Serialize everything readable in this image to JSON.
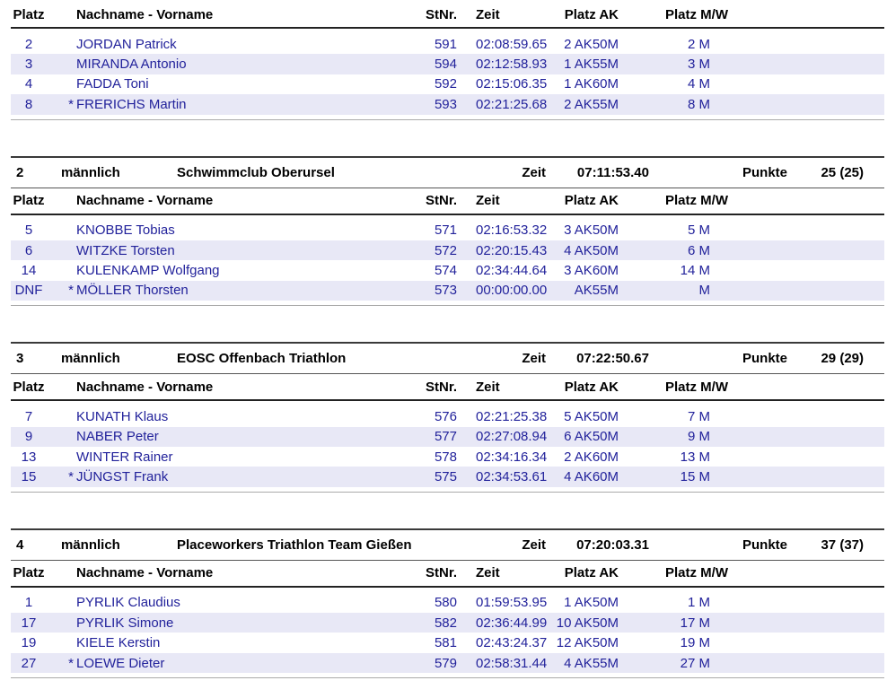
{
  "labels": {
    "zeit": "Zeit",
    "punkte": "Punkte"
  },
  "columns": {
    "platz": "Platz",
    "name": "Nachname - Vorname",
    "stnr": "StNr.",
    "zeit": "Zeit",
    "platz_ak": "Platz AK",
    "platz_mw": "Platz M/W"
  },
  "colors": {
    "data_text": "#22229b",
    "header_text": "#000000",
    "row_alt_background": "#e8e8f6",
    "rule_dark": "#3a3a3a",
    "rule_gray": "#aaaaaa"
  },
  "sections": [
    {
      "team": null,
      "rows": [
        {
          "platz": "2",
          "star": "",
          "name": "JORDAN Patrick",
          "stnr": "591",
          "zeit": "02:08:59.65",
          "platz_ak": "2 AK50M",
          "platz_mw": "2 M"
        },
        {
          "platz": "3",
          "star": "",
          "name": "MIRANDA Antonio",
          "stnr": "594",
          "zeit": "02:12:58.93",
          "platz_ak": "1 AK55M",
          "platz_mw": "3 M"
        },
        {
          "platz": "4",
          "star": "",
          "name": "FADDA Toni",
          "stnr": "592",
          "zeit": "02:15:06.35",
          "platz_ak": "1 AK60M",
          "platz_mw": "4 M"
        },
        {
          "platz": "8",
          "star": "*",
          "name": "FRERICHS Martin",
          "stnr": "593",
          "zeit": "02:21:25.68",
          "platz_ak": "2 AK55M",
          "platz_mw": "8 M"
        }
      ]
    },
    {
      "team": {
        "rank": "2",
        "gender": "männlich",
        "name": "Schwimmclub Oberursel",
        "zeit": "07:11:53.40",
        "punkte": "25 (25)"
      },
      "rows": [
        {
          "platz": "5",
          "star": "",
          "name": "KNOBBE Tobias",
          "stnr": "571",
          "zeit": "02:16:53.32",
          "platz_ak": "3 AK50M",
          "platz_mw": "5 M"
        },
        {
          "platz": "6",
          "star": "",
          "name": "WITZKE Torsten",
          "stnr": "572",
          "zeit": "02:20:15.43",
          "platz_ak": "4 AK50M",
          "platz_mw": "6 M"
        },
        {
          "platz": "14",
          "star": "",
          "name": "KULENKAMP Wolfgang",
          "stnr": "574",
          "zeit": "02:34:44.64",
          "platz_ak": "3 AK60M",
          "platz_mw": "14 M"
        },
        {
          "platz": "DNF",
          "star": "*",
          "name": "MÖLLER Thorsten",
          "stnr": "573",
          "zeit": "00:00:00.00",
          "platz_ak": "AK55M",
          "platz_mw": "M"
        }
      ]
    },
    {
      "team": {
        "rank": "3",
        "gender": "männlich",
        "name": "EOSC Offenbach Triathlon",
        "zeit": "07:22:50.67",
        "punkte": "29 (29)"
      },
      "rows": [
        {
          "platz": "7",
          "star": "",
          "name": "KUNATH Klaus",
          "stnr": "576",
          "zeit": "02:21:25.38",
          "platz_ak": "5 AK50M",
          "platz_mw": "7 M"
        },
        {
          "platz": "9",
          "star": "",
          "name": "NABER Peter",
          "stnr": "577",
          "zeit": "02:27:08.94",
          "platz_ak": "6 AK50M",
          "platz_mw": "9 M"
        },
        {
          "platz": "13",
          "star": "",
          "name": "WINTER Rainer",
          "stnr": "578",
          "zeit": "02:34:16.34",
          "platz_ak": "2 AK60M",
          "platz_mw": "13 M"
        },
        {
          "platz": "15",
          "star": "*",
          "name": "JÜNGST Frank",
          "stnr": "575",
          "zeit": "02:34:53.61",
          "platz_ak": "4 AK60M",
          "platz_mw": "15 M"
        }
      ]
    },
    {
      "team": {
        "rank": "4",
        "gender": "männlich",
        "name": "Placeworkers Triathlon Team Gießen",
        "zeit": "07:20:03.31",
        "punkte": "37 (37)"
      },
      "rows": [
        {
          "platz": "1",
          "star": "",
          "name": "PYRLIK Claudius",
          "stnr": "580",
          "zeit": "01:59:53.95",
          "platz_ak": "1 AK50M",
          "platz_mw": "1 M"
        },
        {
          "platz": "17",
          "star": "",
          "name": "PYRLIK Simone",
          "stnr": "582",
          "zeit": "02:36:44.99",
          "platz_ak": "10 AK50M",
          "platz_mw": "17 M"
        },
        {
          "platz": "19",
          "star": "",
          "name": "KIELE Kerstin",
          "stnr": "581",
          "zeit": "02:43:24.37",
          "platz_ak": "12 AK50M",
          "platz_mw": "19 M"
        },
        {
          "platz": "27",
          "star": "*",
          "name": "LOEWE Dieter",
          "stnr": "579",
          "zeit": "02:58:31.44",
          "platz_ak": "4 AK55M",
          "platz_mw": "27 M"
        }
      ]
    }
  ]
}
